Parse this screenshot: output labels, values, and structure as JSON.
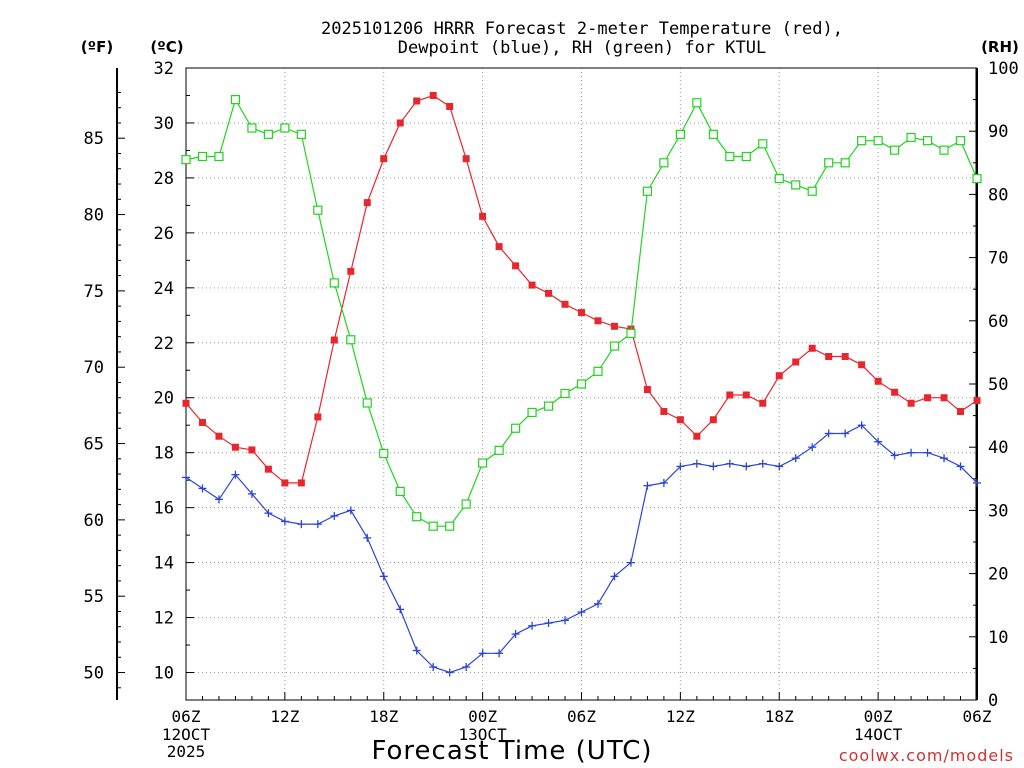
{
  "chart_data": {
    "type": "line",
    "title_line1": "2025101206 HRRR Forecast 2-meter Temperature (red),",
    "title_line2": "Dewpoint (blue), RH (green) for KTUL",
    "xlabel": "Forecast Time (UTC)",
    "watermark": "coolwx.com/models",
    "axis_label_f": "(ºF)",
    "axis_label_c": "(ºC)",
    "axis_label_rh": "(RH)",
    "left_axis_f_ticks": [
      50,
      55,
      60,
      65,
      70,
      75,
      80,
      85
    ],
    "left_axis_c_ticks": [
      10,
      12,
      14,
      16,
      18,
      20,
      22,
      24,
      26,
      28,
      30,
      32
    ],
    "right_axis_rh_ticks": [
      0,
      10,
      20,
      30,
      40,
      50,
      60,
      70,
      80,
      90,
      100
    ],
    "ylim_c": [
      9.0,
      32.0
    ],
    "ylim_rh": [
      0,
      100
    ],
    "xlim_hours": [
      0,
      48
    ],
    "x_ticks": [
      {
        "hour": 0,
        "label": "06Z",
        "sub1": "12OCT",
        "sub2": "2025"
      },
      {
        "hour": 6,
        "label": "12Z",
        "sub1": "",
        "sub2": ""
      },
      {
        "hour": 12,
        "label": "18Z",
        "sub1": "",
        "sub2": ""
      },
      {
        "hour": 18,
        "label": "00Z",
        "sub1": "13OCT",
        "sub2": ""
      },
      {
        "hour": 24,
        "label": "06Z",
        "sub1": "",
        "sub2": ""
      },
      {
        "hour": 30,
        "label": "12Z",
        "sub1": "",
        "sub2": ""
      },
      {
        "hour": 36,
        "label": "18Z",
        "sub1": "",
        "sub2": ""
      },
      {
        "hour": 42,
        "label": "00Z",
        "sub1": "14OCT",
        "sub2": ""
      },
      {
        "hour": 48,
        "label": "06Z",
        "sub1": "",
        "sub2": ""
      }
    ],
    "series": [
      {
        "name": "Temperature",
        "units": "C",
        "color": "#e8262d",
        "marker": "filled-square",
        "values": [
          19.8,
          19.1,
          18.6,
          18.2,
          18.1,
          17.4,
          16.9,
          16.9,
          19.3,
          22.1,
          24.6,
          27.1,
          28.7,
          30.0,
          30.8,
          31.0,
          30.6,
          28.7,
          26.6,
          25.5,
          24.8,
          24.1,
          23.8,
          23.4,
          23.1,
          22.8,
          22.6,
          22.5,
          20.3,
          19.5,
          19.2,
          18.6,
          19.2,
          20.1,
          20.1,
          19.8,
          20.8,
          21.3,
          21.8,
          21.5,
          21.5,
          21.2,
          20.6,
          20.2,
          19.8,
          20.0,
          20.0,
          19.5,
          19.9
        ]
      },
      {
        "name": "Dewpoint",
        "units": "C",
        "color": "#2b45d8",
        "marker": "plus",
        "values": [
          17.1,
          16.7,
          16.3,
          17.2,
          16.5,
          15.8,
          15.5,
          15.4,
          15.4,
          15.7,
          15.9,
          14.9,
          13.5,
          12.3,
          10.8,
          10.2,
          10.0,
          10.2,
          10.7,
          10.7,
          11.4,
          11.7,
          11.8,
          11.9,
          12.2,
          12.5,
          13.5,
          14.0,
          16.8,
          16.9,
          17.5,
          17.6,
          17.5,
          17.6,
          17.5,
          17.6,
          17.5,
          17.8,
          18.2,
          18.7,
          18.7,
          19.0,
          18.4,
          17.9,
          18.0,
          18.0,
          17.8,
          17.5,
          16.9
        ]
      },
      {
        "name": "RH",
        "units": "%",
        "color": "#22d41e",
        "marker": "open-square",
        "values": [
          85.5,
          86.0,
          86.0,
          95.0,
          90.5,
          89.5,
          90.5,
          89.5,
          77.5,
          66.0,
          57.0,
          47.0,
          39.0,
          33.0,
          29.0,
          27.5,
          27.5,
          31.0,
          37.5,
          39.5,
          43.0,
          45.5,
          46.5,
          48.5,
          50.0,
          52.0,
          56.0,
          58.0,
          80.5,
          85.0,
          89.5,
          94.5,
          89.5,
          86.0,
          86.0,
          88.0,
          82.5,
          81.5,
          80.5,
          85.0,
          85.0,
          88.5,
          88.5,
          87.0,
          89.0,
          88.5,
          87.0,
          88.5,
          82.5
        ]
      }
    ]
  }
}
